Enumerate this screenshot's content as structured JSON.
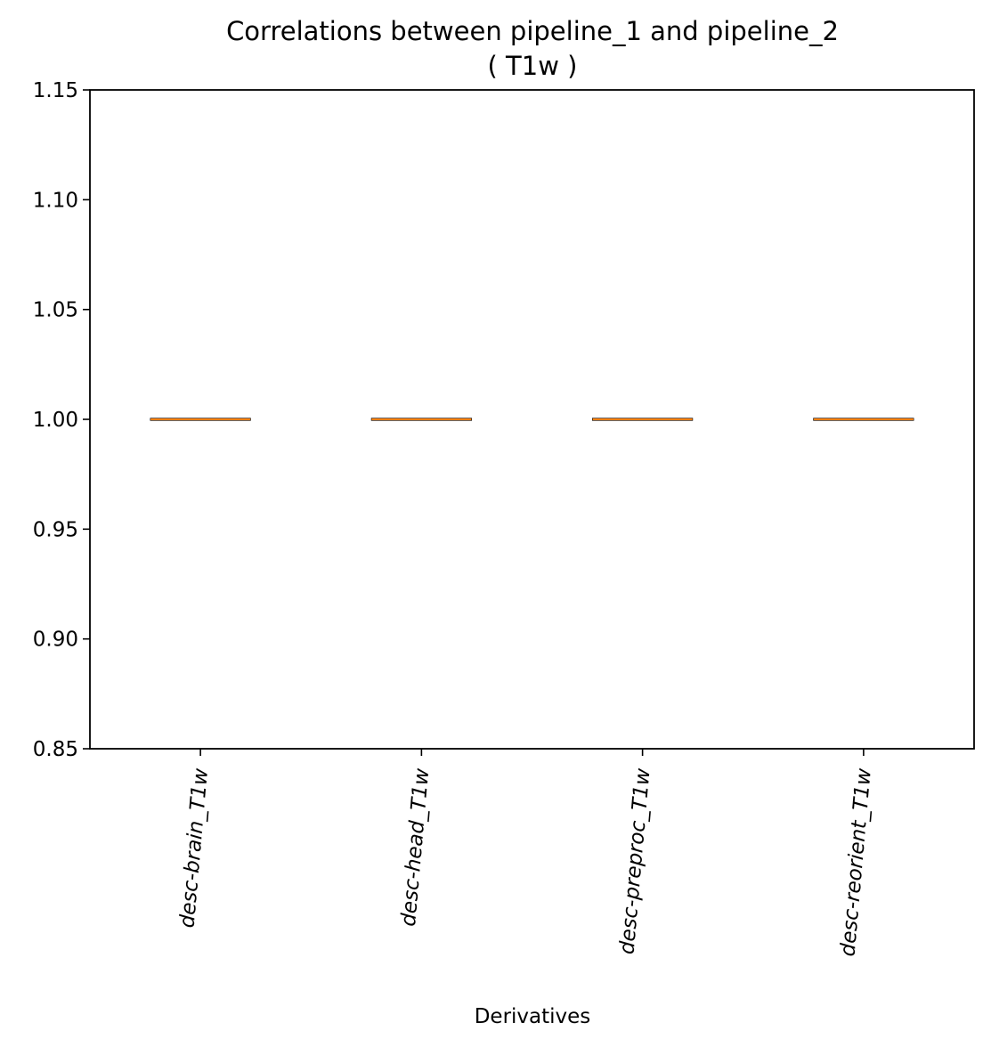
{
  "chart_data": {
    "type": "box",
    "title": "Correlations between pipeline_1 and pipeline_2",
    "subtitle": "( T1w )",
    "xlabel": "Derivatives",
    "ylabel": "",
    "ylim": [
      0.85,
      1.15
    ],
    "yticks": [
      "0.85",
      "0.90",
      "0.95",
      "1.00",
      "1.05",
      "1.10",
      "1.15"
    ],
    "ytick_values": [
      0.85,
      0.9,
      0.95,
      1.0,
      1.05,
      1.1,
      1.15
    ],
    "categories": [
      "desc-brain_T1w",
      "desc-head_T1w",
      "desc-preproc_T1w",
      "desc-reorient_T1w"
    ],
    "boxes": [
      {
        "category": "desc-brain_T1w",
        "min": 1.0,
        "q1": 1.0,
        "median": 1.0,
        "q3": 1.0,
        "max": 1.0
      },
      {
        "category": "desc-head_T1w",
        "min": 1.0,
        "q1": 1.0,
        "median": 1.0,
        "q3": 1.0,
        "max": 1.0
      },
      {
        "category": "desc-preproc_T1w",
        "min": 1.0,
        "q1": 1.0,
        "median": 1.0,
        "q3": 1.0,
        "max": 1.0
      },
      {
        "category": "desc-reorient_T1w",
        "min": 1.0,
        "q1": 1.0,
        "median": 1.0,
        "q3": 1.0,
        "max": 1.0
      }
    ],
    "grid": false,
    "colors": {
      "median": "#ff7f0e",
      "box": "#000000",
      "axes": "#000000"
    }
  }
}
